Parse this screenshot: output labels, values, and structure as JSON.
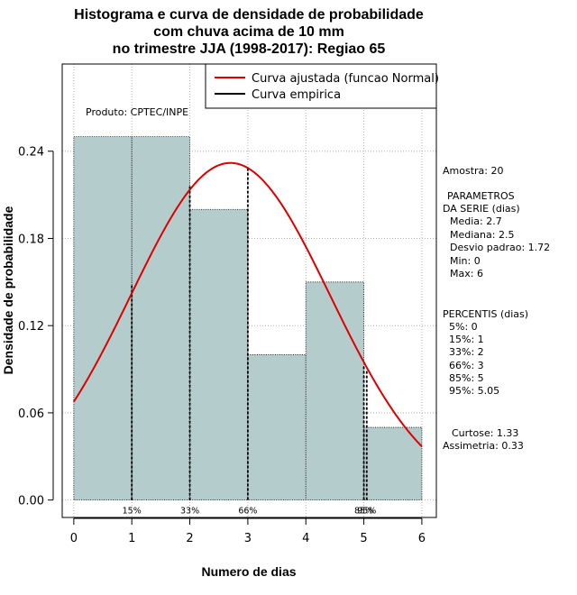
{
  "title_lines": [
    "Histograma e curva de densidade de probabilidade",
    "com chuva acima de 10 mm",
    "no trimestre JJA (1998-2017): Regiao 65"
  ],
  "product_label": "Produto: CPTEC/INPE",
  "legend": {
    "fitted": "Curva ajustada (funcao Normal)",
    "empirical": "Curva empirica"
  },
  "colors": {
    "bar_fill": "#b5cccc",
    "fitted_curve": "#dd0000",
    "empirical": "#000000",
    "grid": "#b0b0b0"
  },
  "side_panel": {
    "sample": "Amostra: 20",
    "params_header_1": "PARAMETROS",
    "params_header_2": "DA SERIE (dias)",
    "mean": "Media: 2.7",
    "median": "Mediana: 2.5",
    "sd": "Desvio padrao: 1.72",
    "min": "Min: 0",
    "max": "Max: 6",
    "pct_header": "PERCENTIS (dias)",
    "p5": "5%: 0",
    "p15": "15%: 1",
    "p33": "33%: 2",
    "p66": "66%: 3",
    "p85": "85%: 5",
    "p95": "95%: 5.05",
    "kurtosis": "Curtose: 1.33",
    "skewness": "Assimetria: 0.33"
  },
  "chart_data": {
    "type": "bar",
    "xlabel": "Numero de dias",
    "ylabel": "Densidade de probabilidade",
    "xlim": [
      -0.2,
      6.25
    ],
    "ylim": [
      -0.012,
      0.3
    ],
    "xticks": [
      "0",
      "1",
      "2",
      "3",
      "4",
      "5",
      "6"
    ],
    "yticks": [
      "0.00",
      "0.06",
      "0.12",
      "0.18",
      "0.24"
    ],
    "bins": [
      {
        "from": 0,
        "to": 1,
        "density": 0.25
      },
      {
        "from": 1,
        "to": 2,
        "density": 0.25
      },
      {
        "from": 2,
        "to": 3,
        "density": 0.2
      },
      {
        "from": 3,
        "to": 4,
        "density": 0.1
      },
      {
        "from": 4,
        "to": 5,
        "density": 0.15
      },
      {
        "from": 5,
        "to": 6,
        "density": 0.05
      }
    ],
    "normal_fit": {
      "mean": 2.7,
      "sd": 1.72
    },
    "percentile_lines": [
      {
        "label": "15%",
        "x": 1,
        "height": 0.148
      },
      {
        "label": "33%",
        "x": 2,
        "height": 0.217
      },
      {
        "label": "66%",
        "x": 3,
        "height": 0.229
      },
      {
        "label": "85%",
        "x": 5,
        "height": 0.093
      },
      {
        "label": "95%",
        "x": 5.05,
        "height": 0.09
      }
    ],
    "grid": true,
    "legend_position": "top-right"
  }
}
